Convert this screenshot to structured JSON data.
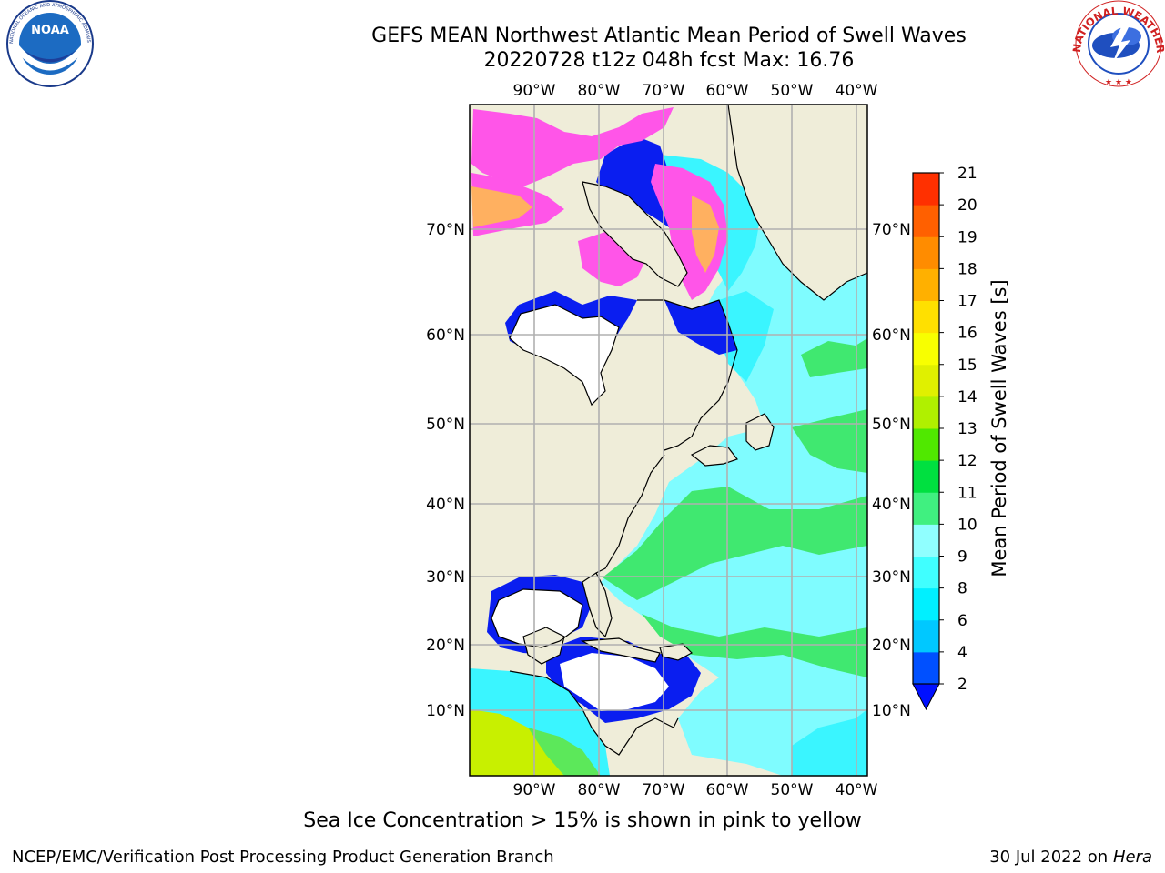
{
  "header": {
    "title_line1": "GEFS MEAN Northwest Atlantic Mean Period of Swell Waves",
    "title_line2": "20220728 t12z 048h fcst   Max: 16.76"
  },
  "logos": {
    "left": {
      "name": "NOAA",
      "ring_text": "NATIONAL OCEANIC AND ATMOSPHERIC ADMINISTRATION · U.S. DEPARTMENT OF COMMERCE"
    },
    "right": {
      "ring_text": "NATIONAL WEATHER SERVICE"
    }
  },
  "map": {
    "lon_labels": [
      "90°W",
      "80°W",
      "70°W",
      "60°W",
      "50°W",
      "40°W"
    ],
    "lat_labels": [
      "70°N",
      "60°N",
      "50°N",
      "40°N",
      "30°N",
      "20°N",
      "10°N"
    ],
    "colors": {
      "land": "#efedd9",
      "grid": "#b0b0b0",
      "coast": "#000000",
      "deep_blue": "#0a1ef0",
      "cyan": "#3af5ff",
      "light_cyan": "#7ffcff",
      "green": "#40e870",
      "mid_green": "#5ce85a",
      "yellow_green": "#c8f000",
      "ice_pink": "#ff55e8",
      "ice_orange": "#ffb060"
    }
  },
  "colorbar": {
    "title": "Mean Period of Swell Waves [s]",
    "ticks": [
      "2",
      "4",
      "6",
      "8",
      "9",
      "10",
      "11",
      "12",
      "13",
      "14",
      "15",
      "16",
      "17",
      "18",
      "19",
      "20",
      "21"
    ],
    "colors": [
      "#0050ff",
      "#00c8ff",
      "#00f0ff",
      "#40ffff",
      "#90ffff",
      "#40f080",
      "#00e040",
      "#50e800",
      "#b0f000",
      "#e0f000",
      "#f8ff00",
      "#ffe000",
      "#ffb000",
      "#ff8c00",
      "#ff6000",
      "#ff3000",
      "#ff0000"
    ],
    "under_color": "#0010ff"
  },
  "caption": "Sea Ice Concentration > 15% is shown in pink to yellow",
  "footer": {
    "left": "NCEP/EMC/Verification Post Processing Product Generation Branch",
    "date": "30 Jul 2022 on ",
    "host": "Hera"
  }
}
